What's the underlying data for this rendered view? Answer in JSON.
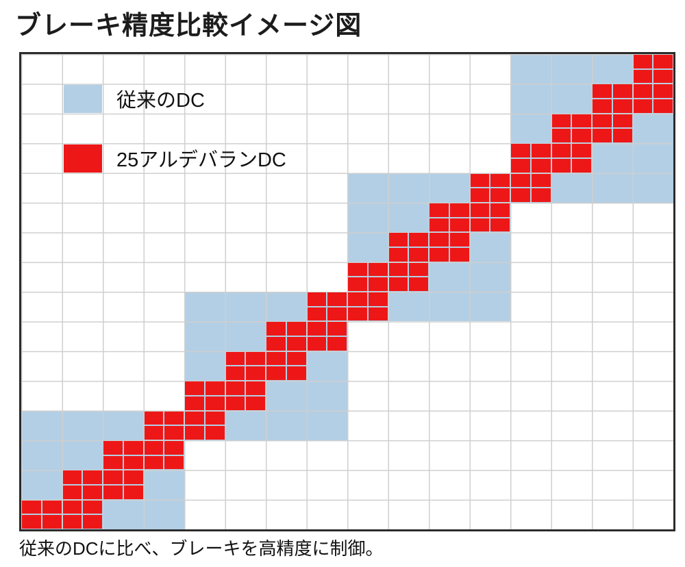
{
  "title": "ブレーキ精度比較イメージ図",
  "caption": "従来のDCに比べ、ブレーキを高精度に制御。",
  "colors": {
    "conventional_blue": "#B3CFE5",
    "aldebaran_red": "#EE1717",
    "gridline": "#CFCFCF",
    "chart_border": "#2B2B2B",
    "text": "#111111",
    "background": "#FFFFFF"
  },
  "legend": {
    "conventional": {
      "label": "従来のDC",
      "color": "#B3CFE5",
      "swatch_cell": {
        "col": 1,
        "row": 1
      }
    },
    "aldebaran": {
      "label": "25アルデバランDC",
      "color": "#EE1717",
      "swatch_cell": {
        "col": 1,
        "row": 3
      }
    }
  },
  "chart_data": {
    "type": "heatmap",
    "title": "ブレーキ精度比較イメージ図",
    "annotation": "従来のDCに比べ、ブレーキを高精度に制御。",
    "grid": {
      "cols": 16,
      "rows": 16,
      "subdivisions_per_cell": 2,
      "gridlines": true
    },
    "legend_position": "top-left-inside",
    "series": [
      {
        "name": "従来のDC",
        "color": "#B3CFE5",
        "cell_unit": "full",
        "blocks": [
          {
            "col": 12,
            "row": 0,
            "w": 4,
            "h": 5
          },
          {
            "col": 8,
            "row": 4,
            "w": 4,
            "h": 5
          },
          {
            "col": 4,
            "row": 8,
            "w": 4,
            "h": 5
          },
          {
            "col": 0,
            "row": 12,
            "w": 4,
            "h": 4
          }
        ]
      },
      {
        "name": "25アルデバランDC",
        "color": "#EE1717",
        "cell_unit": "half",
        "blocks": [
          {
            "col": 30,
            "row": 0,
            "w": 2,
            "h": 2
          },
          {
            "col": 28,
            "row": 2,
            "w": 4,
            "h": 2
          },
          {
            "col": 26,
            "row": 4,
            "w": 4,
            "h": 2
          },
          {
            "col": 24,
            "row": 6,
            "w": 4,
            "h": 2
          },
          {
            "col": 22,
            "row": 8,
            "w": 4,
            "h": 2
          },
          {
            "col": 20,
            "row": 10,
            "w": 4,
            "h": 2
          },
          {
            "col": 18,
            "row": 12,
            "w": 4,
            "h": 2
          },
          {
            "col": 16,
            "row": 14,
            "w": 4,
            "h": 2
          },
          {
            "col": 14,
            "row": 16,
            "w": 4,
            "h": 2
          },
          {
            "col": 12,
            "row": 18,
            "w": 4,
            "h": 2
          },
          {
            "col": 10,
            "row": 20,
            "w": 4,
            "h": 2
          },
          {
            "col": 8,
            "row": 22,
            "w": 4,
            "h": 2
          },
          {
            "col": 6,
            "row": 24,
            "w": 4,
            "h": 2
          },
          {
            "col": 4,
            "row": 26,
            "w": 4,
            "h": 2
          },
          {
            "col": 2,
            "row": 28,
            "w": 4,
            "h": 2
          },
          {
            "col": 0,
            "row": 30,
            "w": 4,
            "h": 2
          }
        ]
      }
    ]
  }
}
